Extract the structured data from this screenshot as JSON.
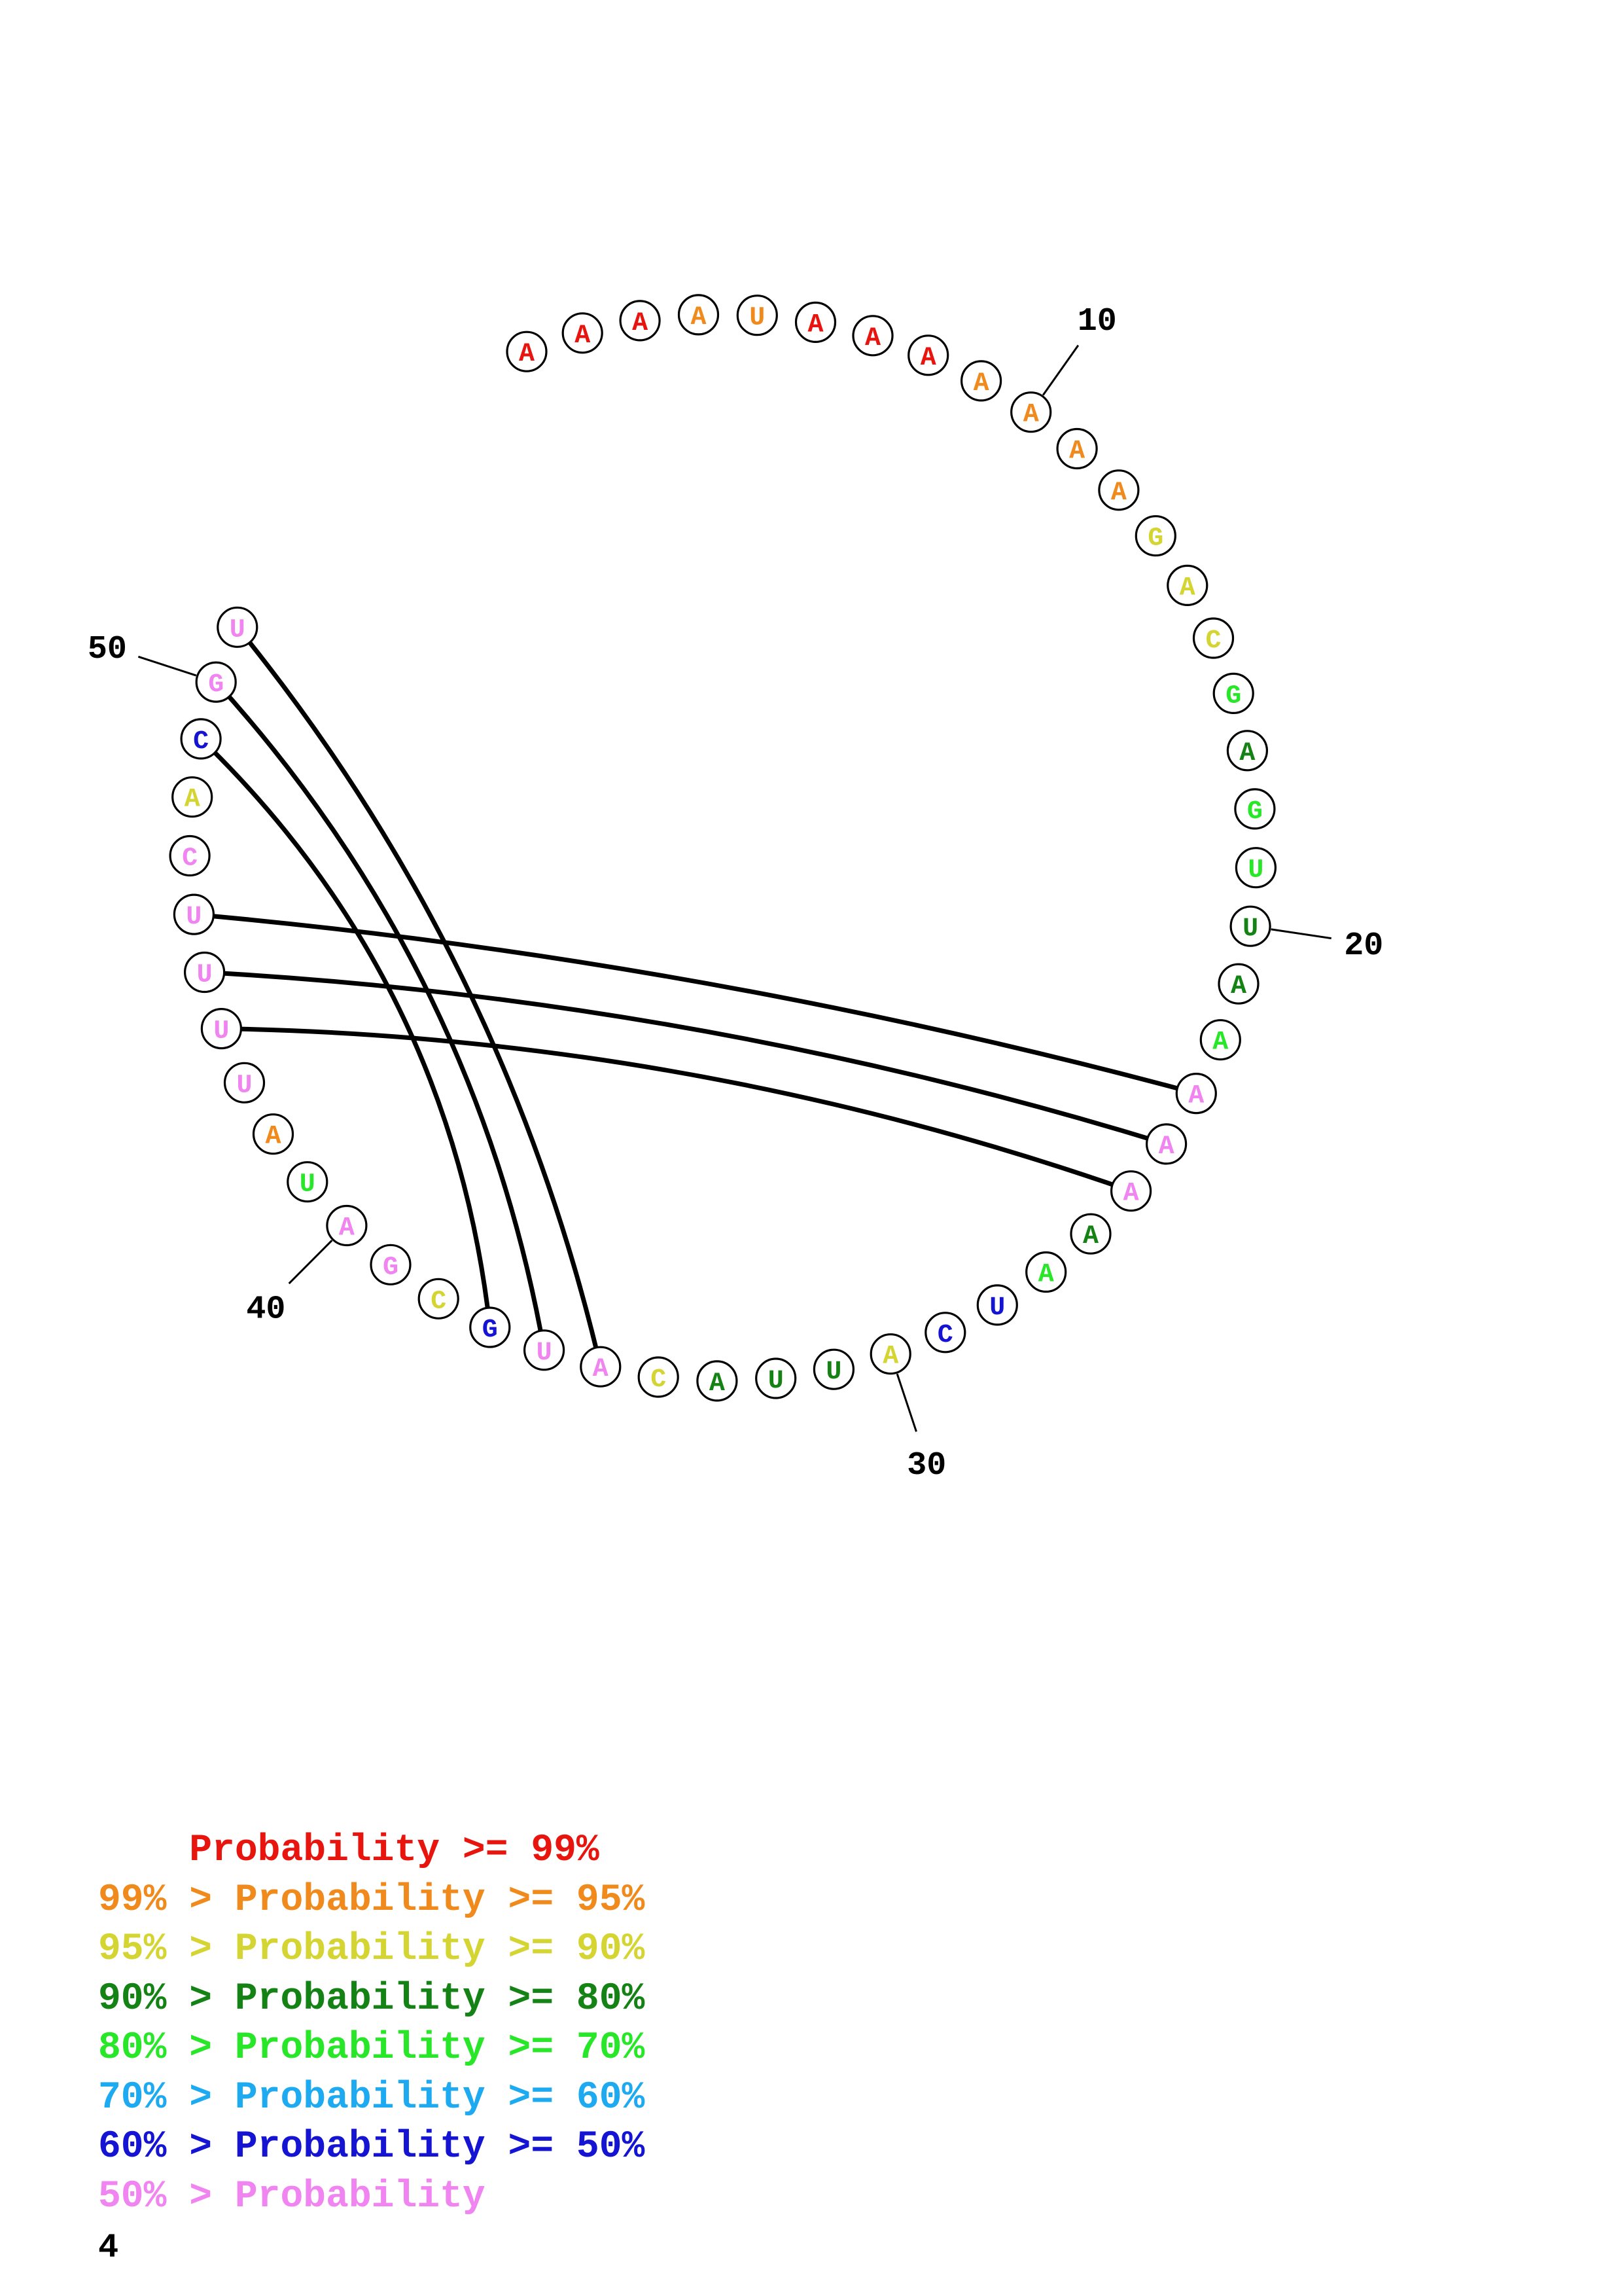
{
  "sequence": [
    {
      "n": 1,
      "letter": "A",
      "color": "#e8140e"
    },
    {
      "n": 2,
      "letter": "A",
      "color": "#e8140e"
    },
    {
      "n": 3,
      "letter": "A",
      "color": "#e8140e"
    },
    {
      "n": 4,
      "letter": "A",
      "color": "#f08a1c"
    },
    {
      "n": 5,
      "letter": "U",
      "color": "#f08a1c"
    },
    {
      "n": 6,
      "letter": "A",
      "color": "#e8140e"
    },
    {
      "n": 7,
      "letter": "A",
      "color": "#e8140e"
    },
    {
      "n": 8,
      "letter": "A",
      "color": "#e8140e"
    },
    {
      "n": 9,
      "letter": "A",
      "color": "#f08a1c"
    },
    {
      "n": 10,
      "letter": "A",
      "color": "#f08a1c"
    },
    {
      "n": 11,
      "letter": "A",
      "color": "#f08a1c"
    },
    {
      "n": 12,
      "letter": "A",
      "color": "#f08a1c"
    },
    {
      "n": 13,
      "letter": "G",
      "color": "#d4d432"
    },
    {
      "n": 14,
      "letter": "A",
      "color": "#d4d432"
    },
    {
      "n": 15,
      "letter": "C",
      "color": "#d4d432"
    },
    {
      "n": 16,
      "letter": "G",
      "color": "#28e628"
    },
    {
      "n": 17,
      "letter": "A",
      "color": "#148214"
    },
    {
      "n": 18,
      "letter": "G",
      "color": "#28e628"
    },
    {
      "n": 19,
      "letter": "U",
      "color": "#28e628"
    },
    {
      "n": 20,
      "letter": "U",
      "color": "#148214"
    },
    {
      "n": 21,
      "letter": "A",
      "color": "#148214"
    },
    {
      "n": 22,
      "letter": "A",
      "color": "#28e628"
    },
    {
      "n": 23,
      "letter": "A",
      "color": "#f084f0"
    },
    {
      "n": 24,
      "letter": "A",
      "color": "#f084f0"
    },
    {
      "n": 25,
      "letter": "A",
      "color": "#f084f0"
    },
    {
      "n": 26,
      "letter": "A",
      "color": "#148214"
    },
    {
      "n": 27,
      "letter": "A",
      "color": "#28e628"
    },
    {
      "n": 28,
      "letter": "U",
      "color": "#1414d2"
    },
    {
      "n": 29,
      "letter": "C",
      "color": "#1414d2"
    },
    {
      "n": 30,
      "letter": "A",
      "color": "#d4d432"
    },
    {
      "n": 31,
      "letter": "U",
      "color": "#148214"
    },
    {
      "n": 32,
      "letter": "U",
      "color": "#148214"
    },
    {
      "n": 33,
      "letter": "A",
      "color": "#148214"
    },
    {
      "n": 34,
      "letter": "C",
      "color": "#d4d432"
    },
    {
      "n": 35,
      "letter": "A",
      "color": "#f084f0"
    },
    {
      "n": 36,
      "letter": "U",
      "color": "#f084f0"
    },
    {
      "n": 37,
      "letter": "G",
      "color": "#1414d2"
    },
    {
      "n": 38,
      "letter": "C",
      "color": "#d4d432"
    },
    {
      "n": 39,
      "letter": "G",
      "color": "#f084f0"
    },
    {
      "n": 40,
      "letter": "A",
      "color": "#f084f0"
    },
    {
      "n": 41,
      "letter": "U",
      "color": "#28e628"
    },
    {
      "n": 42,
      "letter": "A",
      "color": "#f08a1c"
    },
    {
      "n": 43,
      "letter": "U",
      "color": "#f084f0"
    },
    {
      "n": 44,
      "letter": "U",
      "color": "#f084f0"
    },
    {
      "n": 45,
      "letter": "U",
      "color": "#f084f0"
    },
    {
      "n": 46,
      "letter": "U",
      "color": "#f084f0"
    },
    {
      "n": 47,
      "letter": "C",
      "color": "#f084f0"
    },
    {
      "n": 48,
      "letter": "A",
      "color": "#d4d432"
    },
    {
      "n": 49,
      "letter": "C",
      "color": "#1414d2"
    },
    {
      "n": 50,
      "letter": "G",
      "color": "#f084f0"
    },
    {
      "n": 51,
      "letter": "U",
      "color": "#f084f0"
    }
  ],
  "pairs": [
    [
      23,
      46
    ],
    [
      24,
      45
    ],
    [
      25,
      44
    ],
    [
      35,
      51
    ],
    [
      36,
      50
    ],
    [
      37,
      49
    ]
  ],
  "numbered_positions": [
    {
      "n": 10,
      "label": "10"
    },
    {
      "n": 20,
      "label": "20"
    },
    {
      "n": 30,
      "label": "30"
    },
    {
      "n": 40,
      "label": "40"
    },
    {
      "n": 50,
      "label": "50"
    }
  ],
  "legend": [
    {
      "prefix": "    ",
      "label": "Probability >= 99%",
      "color": "#e8140e"
    },
    {
      "prefix": "99% > ",
      "label": "Probability >= 95%",
      "color": "#f08a1c"
    },
    {
      "prefix": "95% > ",
      "label": "Probability >= 90%",
      "color": "#d4d432"
    },
    {
      "prefix": "90% > ",
      "label": "Probability >= 80%",
      "color": "#148214"
    },
    {
      "prefix": "80% > ",
      "label": "Probability >= 70%",
      "color": "#28e628"
    },
    {
      "prefix": "70% > ",
      "label": "Probability >= 60%",
      "color": "#1eaaf0"
    },
    {
      "prefix": "60% > ",
      "label": "Probability >= 50%",
      "color": "#1414d2"
    },
    {
      "prefix": "50% > ",
      "label": "Probability",
      "color": "#f084f0"
    }
  ],
  "page_number": "4"
}
